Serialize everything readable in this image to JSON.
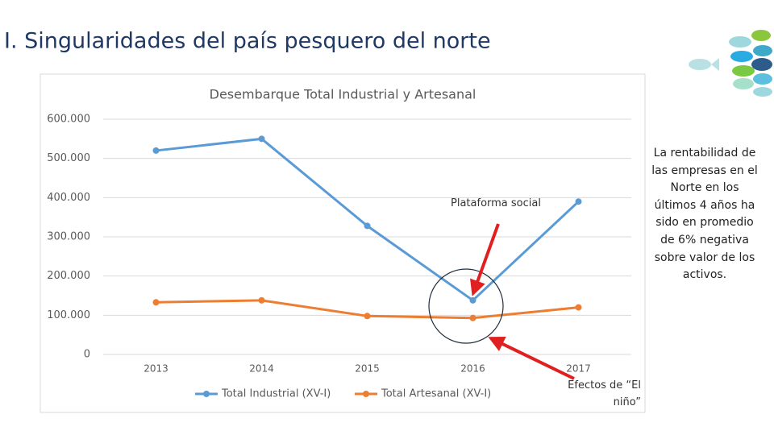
{
  "slide_title": "I. Singularidades del país pesquero del norte",
  "side_text": "La rentabilidad de las empresas en el Norte en los últimos 4 años ha sido en promedio de 6% negativa sobre valor de los activos.",
  "annotations": [
    "Plataforma social",
    "Efectos de “El niño”"
  ],
  "chart_data": {
    "type": "line",
    "title": "Desembarque Total Industrial y Artesanal",
    "categories": [
      "2013",
      "2014",
      "2015",
      "2016",
      "2017"
    ],
    "series": [
      {
        "name": "Total Industrial (XV-I)",
        "color": "#5b9bd5",
        "values": [
          520000,
          550000,
          328000,
          138000,
          390000
        ]
      },
      {
        "name": "Total Artesanal (XV-I)",
        "color": "#ed7d31",
        "values": [
          133000,
          138000,
          98000,
          93000,
          120000
        ]
      }
    ],
    "ylim": [
      0,
      600000
    ],
    "yticks": [
      0,
      {
        "value": 100000,
        "label": "100.000"
      },
      {
        "value": 200000,
        "label": "200.000"
      },
      {
        "value": 300000,
        "label": "300.000"
      },
      {
        "value": 400000,
        "label": "400.000"
      },
      {
        "value": 500000,
        "label": "500.000"
      },
      {
        "value": 600000,
        "label": "600.000"
      }
    ],
    "grid": true,
    "legend": "bottom"
  }
}
